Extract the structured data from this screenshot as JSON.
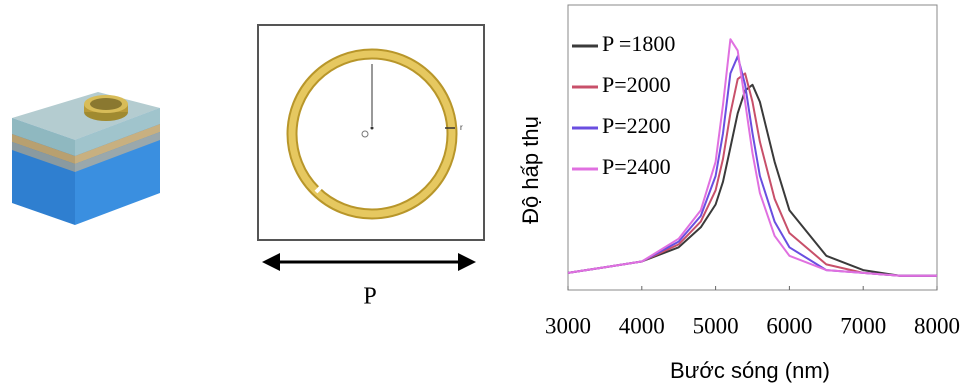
{
  "chart_data": {
    "type": "line",
    "x_label": "Bước sóng (nm)",
    "y_label": "Độ hấp thụ",
    "x": [
      3000,
      3500,
      4000,
      4500,
      4800,
      5000,
      5100,
      5200,
      5300,
      5400,
      5500,
      5600,
      5800,
      6000,
      6500,
      7000,
      7500,
      8000
    ],
    "series": [
      {
        "name": "P =1800",
        "color": "#3a3a3a",
        "values": [
          0.06,
          0.08,
          0.1,
          0.15,
          0.22,
          0.3,
          0.38,
          0.5,
          0.62,
          0.7,
          0.72,
          0.66,
          0.45,
          0.28,
          0.12,
          0.07,
          0.05,
          0.05
        ]
      },
      {
        "name": "P=2000",
        "color": "#c8506a",
        "values": [
          0.06,
          0.08,
          0.1,
          0.16,
          0.24,
          0.35,
          0.46,
          0.62,
          0.74,
          0.76,
          0.66,
          0.52,
          0.32,
          0.2,
          0.09,
          0.06,
          0.05,
          0.05
        ]
      },
      {
        "name": "P=2200",
        "color": "#6a4ee0",
        "values": [
          0.06,
          0.08,
          0.1,
          0.17,
          0.26,
          0.4,
          0.55,
          0.76,
          0.82,
          0.72,
          0.55,
          0.4,
          0.24,
          0.15,
          0.07,
          0.06,
          0.05,
          0.05
        ]
      },
      {
        "name": "P=2400",
        "color": "#e070e0",
        "values": [
          0.06,
          0.08,
          0.1,
          0.18,
          0.28,
          0.45,
          0.65,
          0.88,
          0.84,
          0.66,
          0.48,
          0.34,
          0.19,
          0.12,
          0.07,
          0.06,
          0.05,
          0.05
        ]
      }
    ],
    "xlim": [
      3000,
      8000
    ],
    "xticks": [
      3000,
      4000,
      5000,
      6000,
      7000,
      8000
    ],
    "ylim": [
      0,
      1
    ],
    "legend": "upper left"
  },
  "diagram": {
    "period_label": "P",
    "radius_label": "r"
  }
}
